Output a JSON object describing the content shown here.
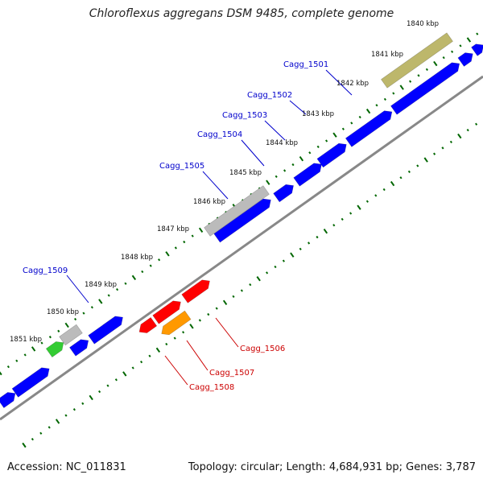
{
  "title": "Chloroflexus aggregans DSM 9485, complete genome",
  "footer": {
    "accession": "Accession: NC_011831",
    "summary": "Topology: circular; Length: 4,684,931 bp; Genes: 3,787"
  },
  "colors": {
    "forward_gene": "#0000ff",
    "reverse_gene": "#ff0000",
    "rna_gene_highlight": "#ff9900",
    "pseudogene": "#bbbbbb",
    "khaki_feature": "#bdb76b",
    "green_feature": "#33cc33",
    "tick": "#006600",
    "backbone": "#888888",
    "forward_label": "#0000cc",
    "reverse_label": "#cc0000"
  },
  "kbp_ticks": [
    "1840 kbp",
    "1841 kbp",
    "1842 kbp",
    "1843 kbp",
    "1844 kbp",
    "1845 kbp",
    "1846 kbp",
    "1847 kbp",
    "1848 kbp",
    "1849 kbp",
    "1850 kbp",
    "1851 kbp"
  ],
  "forward_gene_labels": [
    "Cagg_1501",
    "Cagg_1502",
    "Cagg_1503",
    "Cagg_1504",
    "Cagg_1505",
    "Cagg_1509"
  ],
  "reverse_gene_labels": [
    "Cagg_1506",
    "Cagg_1507",
    "Cagg_1508"
  ]
}
